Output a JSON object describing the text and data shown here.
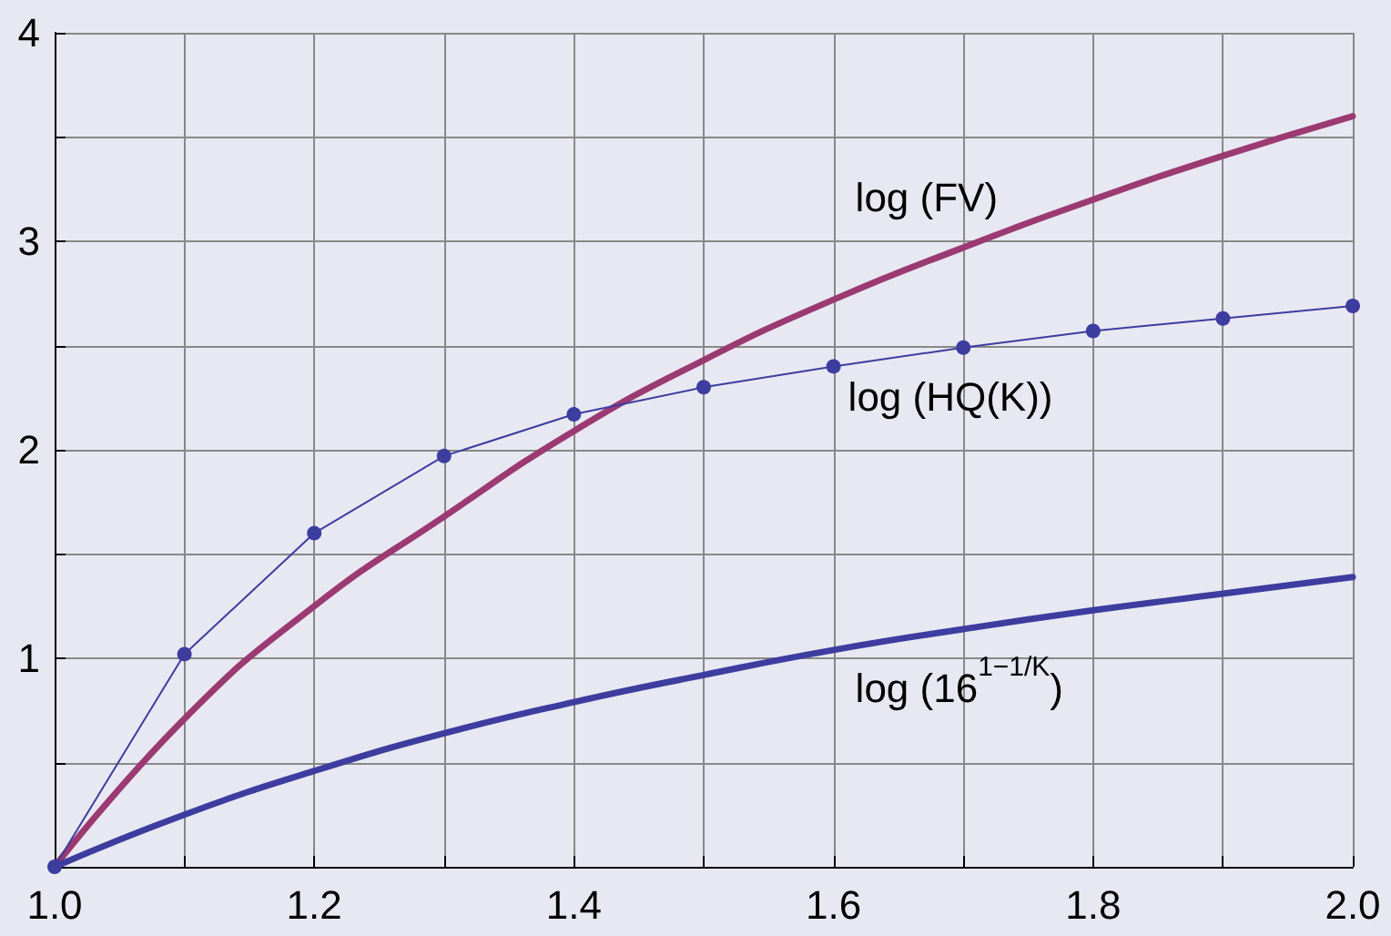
{
  "chart_data": {
    "type": "line",
    "x": [
      1.0,
      1.1,
      1.2,
      1.3,
      1.4,
      1.5,
      1.6,
      1.7,
      1.8,
      1.9,
      2.0
    ],
    "series": [
      {
        "name": "log (FV)",
        "color": "#9b3a72",
        "values": [
          0,
          0.71,
          1.25,
          1.68,
          2.09,
          2.43,
          2.72,
          2.97,
          3.2,
          3.41,
          3.6
        ]
      },
      {
        "name": "log (HQ(K))",
        "color": "#3d3da0",
        "marker": "circle",
        "values": [
          0,
          1.02,
          1.6,
          1.97,
          2.17,
          2.3,
          2.4,
          2.49,
          2.57,
          2.63,
          2.69
        ]
      },
      {
        "name": "log (16$^{1−1/K}$)",
        "color": "#3d3da0",
        "values": [
          0,
          0.25,
          0.46,
          0.64,
          0.79,
          0.92,
          1.04,
          1.14,
          1.23,
          1.31,
          1.39
        ]
      }
    ],
    "xlim": [
      1.0,
      2.0
    ],
    "xticks": [
      {
        "value": 1.0,
        "label": "1.0"
      },
      {
        "value": 1.1,
        "label": null
      },
      {
        "value": 1.2,
        "label": "1.2"
      },
      {
        "value": 1.3,
        "label": null
      },
      {
        "value": 1.4,
        "label": "1.4"
      },
      {
        "value": 1.5,
        "label": null
      },
      {
        "value": 1.6,
        "label": "1.6"
      },
      {
        "value": 1.7,
        "label": null
      },
      {
        "value": 1.8,
        "label": "1.8"
      },
      {
        "value": 1.9,
        "label": null
      },
      {
        "value": 2.0,
        "label": "2.0"
      }
    ],
    "ylim": [
      0,
      4
    ],
    "yticks": [
      {
        "value": 0,
        "label": null
      },
      {
        "value": 0.5,
        "label": null
      },
      1,
      {
        "value": 1.5,
        "label": null
      },
      2,
      {
        "value": 2.5,
        "label": null
      },
      3,
      {
        "value": 3.5,
        "label": null
      },
      4
    ],
    "grid": true
  }
}
